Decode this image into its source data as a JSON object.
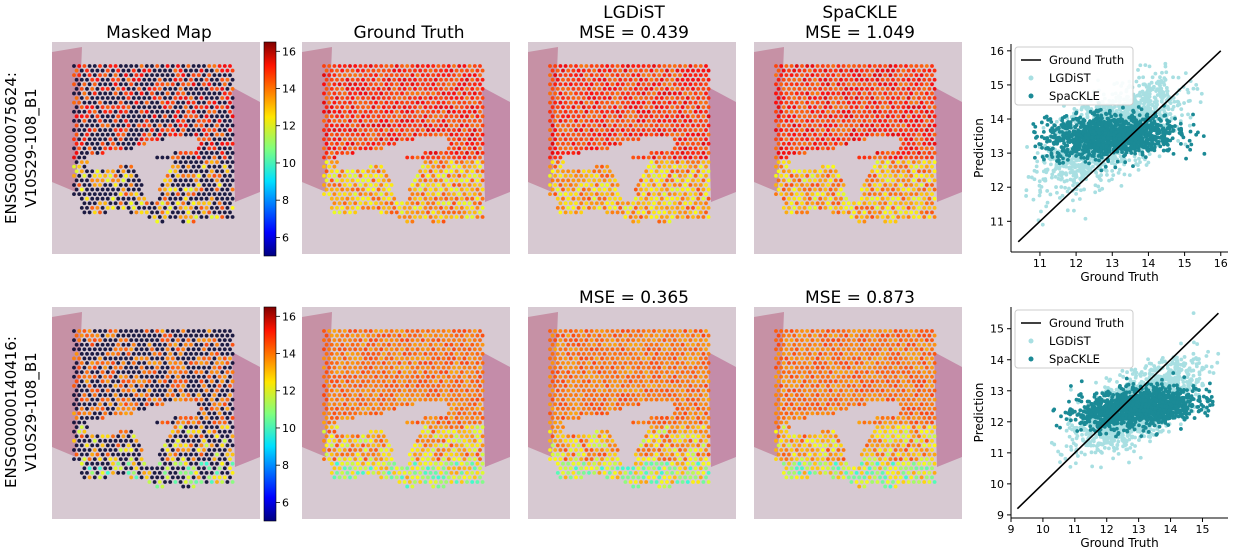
{
  "figure": {
    "rows": [
      {
        "row_label_line1": "ENSG00000075624:",
        "row_label_line2": "V10S29-108_B1",
        "panels": [
          {
            "title": "Masked Map",
            "subtitle": ""
          },
          {
            "title": "Ground Truth",
            "subtitle": ""
          },
          {
            "title": "LGDiST",
            "subtitle": "MSE = 0.439"
          },
          {
            "title": "SpaCKLE",
            "subtitle": "MSE = 1.049"
          }
        ],
        "colorbar_ticks": [
          "16",
          "14",
          "12",
          "10",
          "8",
          "6"
        ]
      },
      {
        "row_label_line1": "ENSG00000140416:",
        "row_label_line2": "V10S29-108_B1",
        "panels": [
          {
            "title": "",
            "subtitle": ""
          },
          {
            "title": "",
            "subtitle": ""
          },
          {
            "title": "",
            "subtitle": "MSE = 0.365"
          },
          {
            "title": "",
            "subtitle": "MSE = 0.873"
          }
        ],
        "colorbar_ticks": [
          "16",
          "14",
          "12",
          "10",
          "8",
          "6"
        ]
      }
    ]
  },
  "chart_data": [
    {
      "type": "scatter",
      "xlabel": "Ground Truth",
      "ylabel": "Prediction",
      "xlim": [
        10.2,
        16.2
      ],
      "ylim": [
        10.1,
        16.2
      ],
      "xticks": [
        "11",
        "12",
        "13",
        "14",
        "15",
        "16"
      ],
      "yticks": [
        "11",
        "12",
        "13",
        "14",
        "15",
        "16"
      ],
      "legend": [
        "Ground Truth",
        "LGDiST",
        "SpaCKLE"
      ],
      "legend_position": "top-left",
      "colors": {
        "ground_truth": "#000000",
        "lgdist": "#a8dfe2",
        "spackle": "#1b8a96"
      },
      "series": [
        {
          "name": "Ground Truth",
          "kind": "line",
          "points": [
            [
              10.4,
              10.4
            ],
            [
              16.0,
              16.0
            ]
          ]
        },
        {
          "name": "LGDiST",
          "kind": "scatter",
          "x_range": [
            10.5,
            15.6
          ],
          "slope": 0.55,
          "intercept_at_13": 13.55,
          "spread": 0.55
        },
        {
          "name": "SpaCKLE",
          "kind": "scatter",
          "x_range": [
            10.8,
            15.6
          ],
          "slope": 0.05,
          "intercept_at_13": 13.5,
          "spread": 0.3
        }
      ]
    },
    {
      "type": "scatter",
      "xlabel": "Ground Truth",
      "ylabel": "Prediction",
      "xlim": [
        9.0,
        15.8
      ],
      "ylim": [
        8.9,
        15.7
      ],
      "xticks": [
        "9",
        "10",
        "11",
        "12",
        "13",
        "14",
        "15"
      ],
      "yticks": [
        "9",
        "10",
        "11",
        "12",
        "13",
        "14",
        "15"
      ],
      "legend": [
        "Ground Truth",
        "LGDiST",
        "SpaCKLE"
      ],
      "legend_position": "top-left",
      "colors": {
        "ground_truth": "#000000",
        "lgdist": "#a8dfe2",
        "spackle": "#1b8a96"
      },
      "series": [
        {
          "name": "Ground Truth",
          "kind": "line",
          "points": [
            [
              9.2,
              9.2
            ],
            [
              15.5,
              15.5
            ]
          ]
        },
        {
          "name": "LGDiST",
          "kind": "scatter",
          "x_range": [
            9.5,
            15.5
          ],
          "slope": 0.5,
          "intercept_at_13": 12.5,
          "spread": 0.5
        },
        {
          "name": "SpaCKLE",
          "kind": "scatter",
          "x_range": [
            10.3,
            15.4
          ],
          "slope": 0.12,
          "intercept_at_13": 12.45,
          "spread": 0.3
        }
      ]
    }
  ],
  "colormap": {
    "name": "jet",
    "vmin": 5,
    "vmax": 16.5
  }
}
